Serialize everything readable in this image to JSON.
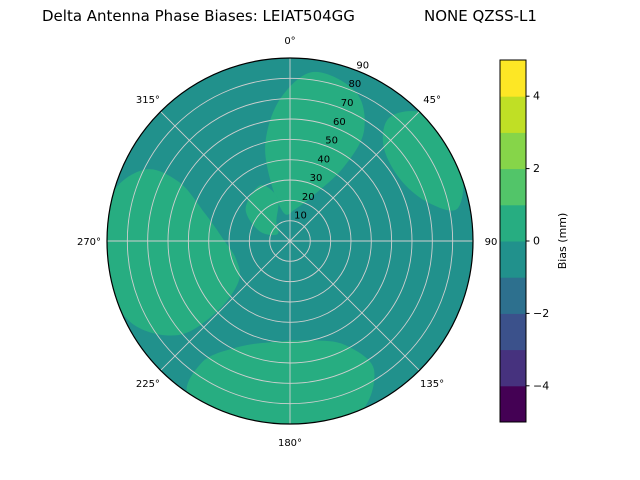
{
  "header": {
    "title_left": "Delta Antenna Phase Biases: LEIAT504GG",
    "title_right": "NONE QZSS-L1"
  },
  "chart_data": {
    "type": "heatmap",
    "subtype": "polar_filled_contour",
    "title": "Delta Antenna Phase Biases: LEIAT504GG      NONE QZSS-L1",
    "angular_ticks": [
      {
        "label": "0°",
        "deg": 0
      },
      {
        "label": "45°",
        "deg": 45
      },
      {
        "label": "90",
        "deg": 90
      },
      {
        "label": "135°",
        "deg": 135
      },
      {
        "label": "180°",
        "deg": 180
      },
      {
        "label": "225°",
        "deg": 225
      },
      {
        "label": "270°",
        "deg": 270
      },
      {
        "label": "315°",
        "deg": 315
      }
    ],
    "radial_ticks": [
      10,
      20,
      30,
      40,
      50,
      60,
      70,
      80,
      90
    ],
    "radial_max": 90,
    "radial_label_angle_deg": 22.5,
    "grid_color": "#cfcfcf",
    "outline_color": "#000000",
    "colorbar": {
      "label": "Bias (mm)",
      "min": -5,
      "max": 5,
      "ticks": [
        {
          "v": -4,
          "label": "−4"
        },
        {
          "v": -2,
          "label": "−2"
        },
        {
          "v": 0,
          "label": "0"
        },
        {
          "v": 2,
          "label": "2"
        },
        {
          "v": 4,
          "label": "4"
        }
      ],
      "band_colors": [
        "#440154",
        "#46327e",
        "#3b518b",
        "#2d708e",
        "#21918c",
        "#27ad81",
        "#52c569",
        "#86d549",
        "#c0df25",
        "#fde725"
      ]
    },
    "base_band": {
      "range_mm": [
        -1,
        0
      ],
      "color": "#21918c"
    },
    "patch_band": {
      "range_mm": [
        0,
        1
      ],
      "color": "#27ad81"
    },
    "patch_regions_polar": [
      [
        [
          348,
          14
        ],
        [
          10,
          16
        ],
        [
          28,
          26
        ],
        [
          36,
          45
        ],
        [
          34,
          65
        ],
        [
          24,
          80
        ],
        [
          8,
          84
        ],
        [
          356,
          70
        ],
        [
          346,
          50
        ],
        [
          342,
          30
        ]
      ],
      [
        [
          232,
          32
        ],
        [
          252,
          28
        ],
        [
          272,
          33
        ],
        [
          288,
          44
        ],
        [
          298,
          62
        ],
        [
          296,
          80
        ],
        [
          283,
          91
        ],
        [
          260,
          92
        ],
        [
          243,
          88
        ],
        [
          230,
          72
        ],
        [
          226,
          50
        ]
      ],
      [
        [
          152,
          58
        ],
        [
          168,
          50
        ],
        [
          188,
          50
        ],
        [
          206,
          58
        ],
        [
          216,
          74
        ],
        [
          212,
          92
        ],
        [
          186,
          93
        ],
        [
          160,
          92
        ],
        [
          147,
          76
        ]
      ],
      [
        [
          44,
          66
        ],
        [
          60,
          62
        ],
        [
          74,
          70
        ],
        [
          79,
          84
        ],
        [
          66,
          92
        ],
        [
          48,
          92
        ],
        [
          39,
          79
        ]
      ],
      [
        [
          298,
          7
        ],
        [
          326,
          12
        ],
        [
          344,
          22
        ],
        [
          332,
          31
        ],
        [
          306,
          27
        ],
        [
          288,
          16
        ]
      ]
    ]
  }
}
